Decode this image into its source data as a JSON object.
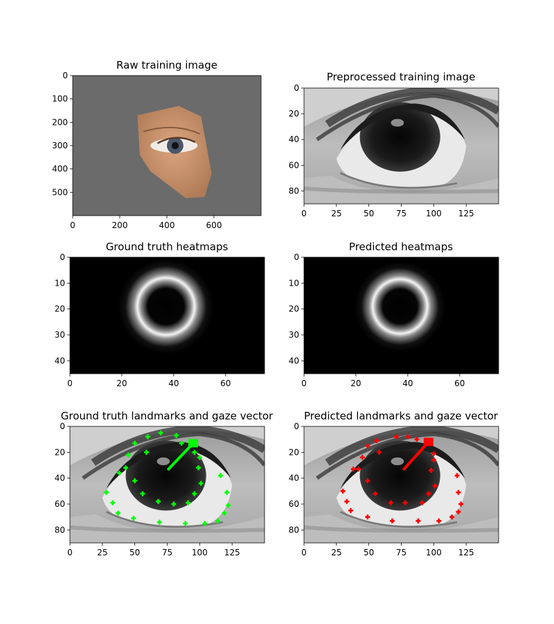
{
  "chart_data": [
    {
      "type": "image",
      "title": "Raw training image",
      "xlim": [
        0,
        800
      ],
      "ylim": [
        600,
        0
      ],
      "xticks": [
        0,
        200,
        400,
        600
      ],
      "yticks": [
        0,
        100,
        200,
        300,
        400,
        500
      ],
      "content": "face-patch-photo",
      "colors": {
        "background": "#6b6b6b",
        "skin": "#c89068"
      }
    },
    {
      "type": "image",
      "title": "Preprocessed training image",
      "xlim": [
        0,
        150
      ],
      "ylim": [
        90,
        0
      ],
      "xticks": [
        0,
        25,
        50,
        75,
        100,
        125
      ],
      "yticks": [
        0,
        20,
        40,
        60,
        80
      ],
      "content": "grayscale-eye"
    },
    {
      "type": "heatmap",
      "title": "Ground truth heatmaps",
      "xlim": [
        0,
        75
      ],
      "ylim": [
        45,
        0
      ],
      "xticks": [
        0,
        20,
        40,
        60
      ],
      "yticks": [
        0,
        10,
        20,
        30,
        40
      ],
      "ring": {
        "cx": 37,
        "cy": 19,
        "r": 10.5
      }
    },
    {
      "type": "heatmap",
      "title": "Predicted heatmaps",
      "xlim": [
        0,
        75
      ],
      "ylim": [
        45,
        0
      ],
      "xticks": [
        0,
        20,
        40,
        60
      ],
      "yticks": [
        0,
        10,
        20,
        30,
        40
      ],
      "ring": {
        "cx": 37,
        "cy": 19,
        "r": 10
      }
    },
    {
      "type": "scatter",
      "title": "Ground truth landmarks and gaze vector",
      "xlim": [
        0,
        150
      ],
      "ylim": [
        90,
        0
      ],
      "xticks": [
        0,
        25,
        50,
        75,
        100,
        125
      ],
      "yticks": [
        0,
        20,
        40,
        60,
        80
      ],
      "color": "#00ff00",
      "landmarks": [
        [
          70,
          5
        ],
        [
          82,
          7
        ],
        [
          60,
          8
        ],
        [
          50,
          13
        ],
        [
          86,
          13
        ],
        [
          45,
          22
        ],
        [
          59,
          20
        ],
        [
          96,
          20
        ],
        [
          43,
          32
        ],
        [
          38,
          36
        ],
        [
          100,
          24
        ],
        [
          99,
          32
        ],
        [
          50,
          42
        ],
        [
          56,
          52
        ],
        [
          101,
          44
        ],
        [
          96,
          52
        ],
        [
          68,
          58
        ],
        [
          80,
          60
        ],
        [
          91,
          59
        ],
        [
          28,
          51
        ],
        [
          33,
          59
        ],
        [
          37,
          67
        ],
        [
          49,
          71
        ],
        [
          69,
          74
        ],
        [
          89,
          75
        ],
        [
          104,
          75
        ],
        [
          114,
          73
        ],
        [
          119,
          67
        ],
        [
          122,
          61
        ],
        [
          121,
          51
        ],
        [
          116,
          38
        ]
      ],
      "gaze": {
        "from": [
          76,
          33
        ],
        "to": [
          95,
          13
        ]
      }
    },
    {
      "type": "scatter",
      "title": "Predicted landmarks and gaze vector",
      "xlim": [
        0,
        150
      ],
      "ylim": [
        90,
        0
      ],
      "xticks": [
        0,
        25,
        50,
        75,
        100,
        125
      ],
      "yticks": [
        0,
        20,
        40,
        60,
        80
      ],
      "color": "#ff0000",
      "landmarks": [
        [
          71,
          8
        ],
        [
          80,
          8
        ],
        [
          56,
          11
        ],
        [
          49,
          15
        ],
        [
          87,
          10
        ],
        [
          45,
          24
        ],
        [
          58,
          20
        ],
        [
          100,
          21
        ],
        [
          42,
          33
        ],
        [
          38,
          33
        ],
        [
          100,
          26
        ],
        [
          98,
          34
        ],
        [
          49,
          42
        ],
        [
          55,
          52
        ],
        [
          101,
          46
        ],
        [
          96,
          52
        ],
        [
          67,
          59
        ],
        [
          78,
          59
        ],
        [
          91,
          59
        ],
        [
          30,
          50
        ],
        [
          33,
          58
        ],
        [
          36,
          65
        ],
        [
          49,
          70
        ],
        [
          68,
          73
        ],
        [
          88,
          73
        ],
        [
          104,
          73
        ],
        [
          114,
          70
        ],
        [
          119,
          66
        ],
        [
          121,
          60
        ],
        [
          119,
          51
        ],
        [
          118,
          38
        ]
      ],
      "gaze": {
        "from": [
          77,
          33
        ],
        "to": [
          96,
          12
        ]
      }
    }
  ]
}
